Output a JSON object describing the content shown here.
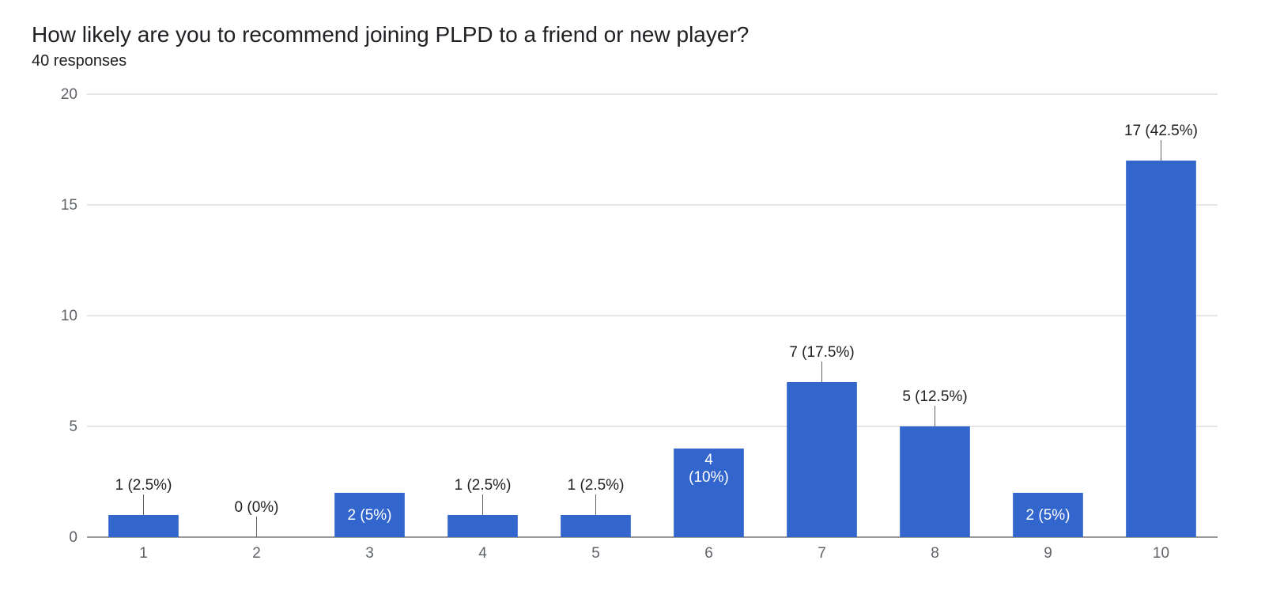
{
  "title": "How likely are you to recommend joining PLPD to a friend or new player?",
  "subtitle": "40 responses",
  "chart": {
    "type": "bar",
    "categories": [
      "1",
      "2",
      "3",
      "4",
      "5",
      "6",
      "7",
      "8",
      "9",
      "10"
    ],
    "values": [
      1,
      0,
      2,
      1,
      1,
      4,
      7,
      5,
      2,
      17
    ],
    "labels": [
      "1 (2.5%)",
      "0 (0%)",
      "2 (5%)",
      "1 (2.5%)",
      "1 (2.5%)",
      "4 (10%)",
      "7 (17.5%)",
      "5 (12.5%)",
      "2 (5%)",
      "17 (42.5%)"
    ],
    "label_inside": [
      false,
      false,
      true,
      false,
      false,
      true,
      false,
      false,
      true,
      false
    ],
    "bar_color": "#3366cc",
    "background_color": "#ffffff",
    "grid_color": "#cccccc",
    "axis_color": "#333333",
    "tick_label_color": "#5f6368",
    "ylim": [
      0,
      20
    ],
    "ytick_step": 5,
    "yticks": [
      0,
      5,
      10,
      15,
      20
    ],
    "bar_width_ratio": 0.62,
    "pointer_color": "#636363",
    "label_fontsize": 19,
    "tick_fontsize": 19,
    "title_fontsize": 28,
    "subtitle_fontsize": 20
  }
}
